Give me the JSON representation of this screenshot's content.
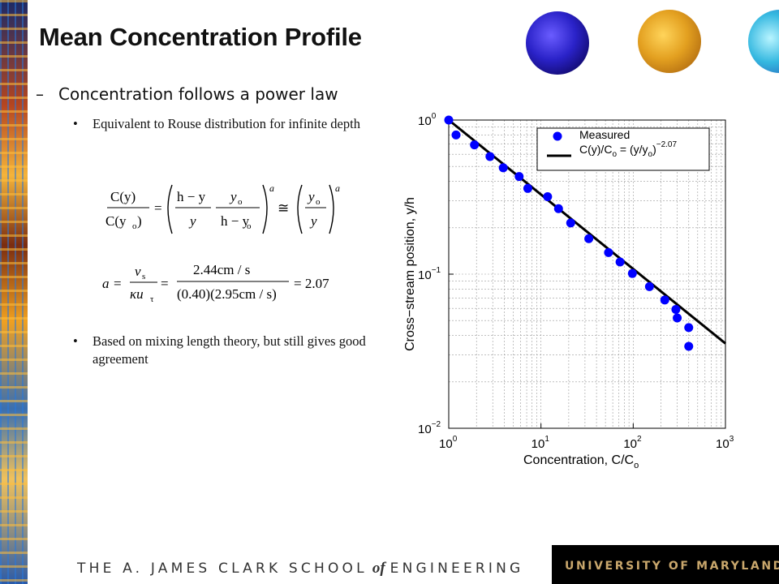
{
  "slide": {
    "title": "Mean Concentration Profile",
    "bullet_main": "Concentration follows a power law",
    "bullet_dash": "–",
    "sub_bullets": [
      "Equivalent to Rouse distribution for infinite depth",
      "Based on mixing length theory, but still gives good agreement"
    ],
    "sub_bullet_marker": "•"
  },
  "equations": {
    "eq1_lhs_num": "C(y)",
    "eq1_lhs_den": "C(y",
    "eq1_sub_o": "o",
    "eq1_frac1_num": "h − y",
    "eq1_frac1_den": "y",
    "eq1_frac2_num": "y",
    "eq1_frac2_den": "h − y",
    "eq1_exp": "a",
    "eq1_approx": "≅",
    "eq2_a": "a",
    "eq2_frac1_num": "v",
    "eq2_frac1_num_sub": "s",
    "eq2_frac1_den": "κu",
    "eq2_frac1_den_sub": "τ",
    "eq2_frac2_num": "2.44cm / s",
    "eq2_frac2_den": "(0.40)(2.95cm / s)",
    "eq2_result": "= 2.07"
  },
  "chart_data": {
    "type": "scatter",
    "xscale": "log",
    "yscale": "log",
    "xlim": [
      1,
      1000
    ],
    "ylim": [
      0.01,
      1
    ],
    "xlabel": "Concentration, C/C",
    "xlabel_sub": "o",
    "ylabel": "Cross−stream position, y/h",
    "x_tick_base": "10",
    "x_tick_exps": [
      "0",
      "1",
      "2",
      "3"
    ],
    "y_tick_base": "10",
    "y_tick_exps": [
      "0",
      "−1",
      "−2"
    ],
    "grid": true,
    "legend_position": "top-right",
    "series": [
      {
        "name": "Measured",
        "kind": "points",
        "color": "#0000ff",
        "points": [
          [
            1.0,
            1.0
          ],
          [
            1.2,
            0.8
          ],
          [
            1.9,
            0.69
          ],
          [
            2.8,
            0.58
          ],
          [
            3.9,
            0.49
          ],
          [
            5.8,
            0.43
          ],
          [
            7.2,
            0.36
          ],
          [
            11.8,
            0.318
          ],
          [
            15.5,
            0.266
          ],
          [
            21.0,
            0.215
          ],
          [
            33.0,
            0.17
          ],
          [
            54.0,
            0.138
          ],
          [
            72.0,
            0.12
          ],
          [
            98.0,
            0.101
          ],
          [
            150.0,
            0.083
          ],
          [
            220.0,
            0.068
          ],
          [
            290.0,
            0.059
          ],
          [
            300.0,
            0.052
          ],
          [
            400.0,
            0.045
          ],
          [
            400.0,
            0.034
          ]
        ]
      },
      {
        "name": "C(y)/C",
        "label_sub": "o",
        "label_mid": " = (y/y",
        "label_sub2": "o",
        "label_end": ")",
        "label_exp": "−2.07",
        "kind": "line",
        "color": "#000000",
        "x": [
          1,
          1000
        ],
        "y": [
          1.0,
          0.0355
        ]
      }
    ]
  },
  "footer": {
    "left_part1": "THE A. JAMES CLARK SCHOOL",
    "left_of": "of",
    "left_part2": "ENGINEERING",
    "right": "UNIVERSITY OF MARYLAND"
  }
}
